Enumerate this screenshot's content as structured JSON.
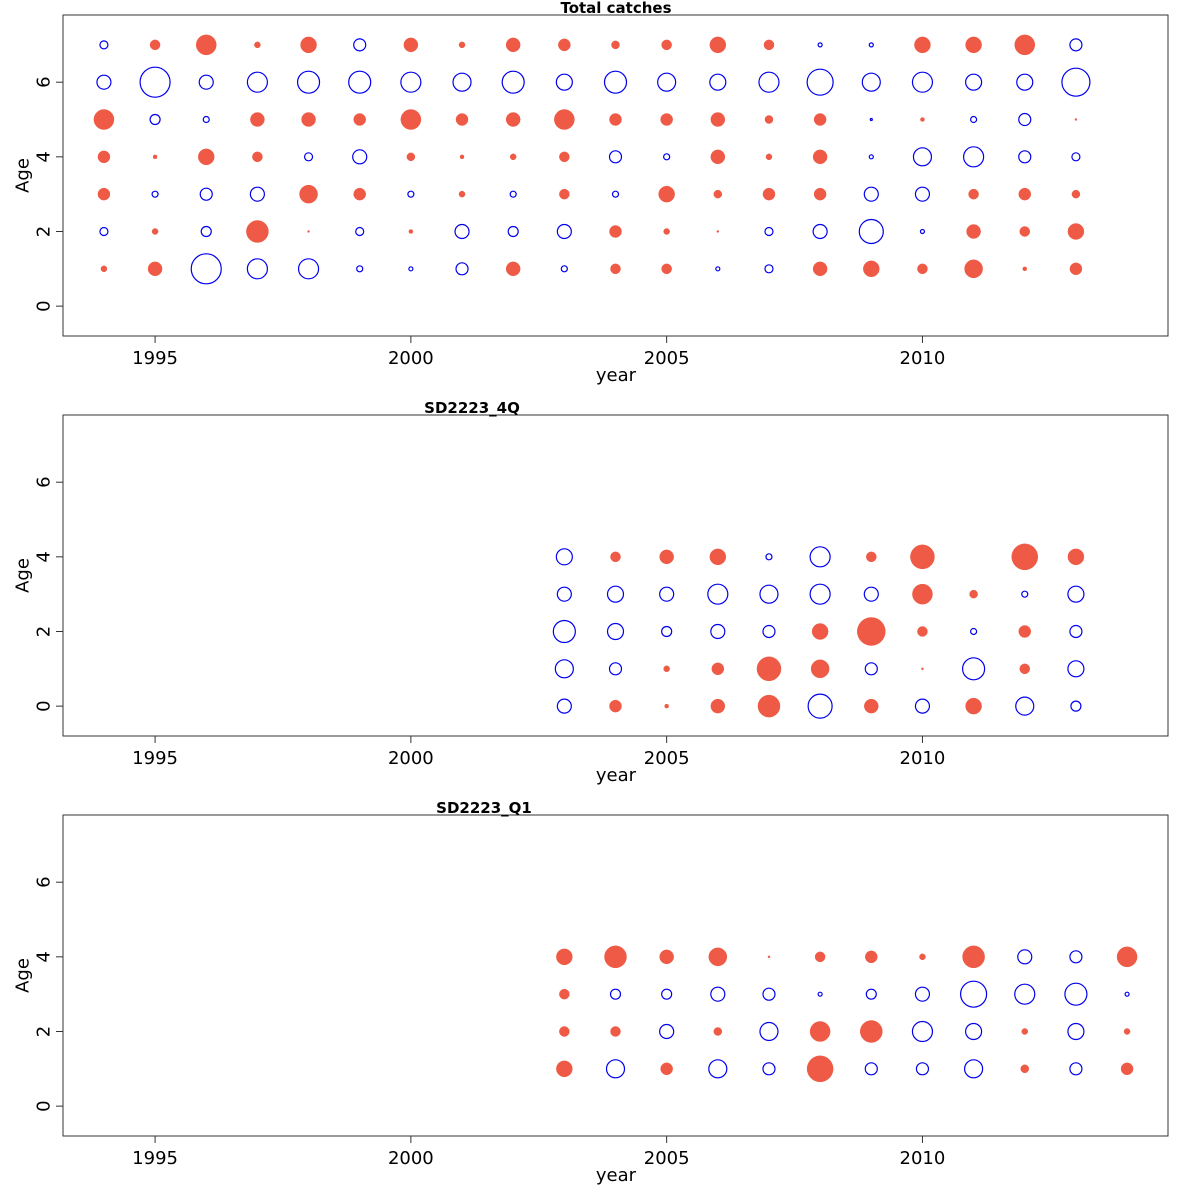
{
  "colors": {
    "positive": "#ee5a45",
    "negative": "#0000ee"
  },
  "chart_data": [
    {
      "type": "scatter",
      "title": "Total catches",
      "xlabel": "year",
      "ylabel": "Age",
      "xlim": [
        1993.2,
        2014.8
      ],
      "ylim": [
        -0.8,
        7.8
      ],
      "xticks": [
        1995,
        2000,
        2005,
        2010
      ],
      "yticks": [
        0,
        2,
        4,
        6
      ],
      "note": "points: [year, age, size, sign] sign 1 = filled, -1 = open",
      "points": [
        [
          1994,
          1,
          3,
          1
        ],
        [
          1994,
          2,
          4,
          -1
        ],
        [
          1994,
          3,
          6,
          1
        ],
        [
          1994,
          4,
          6,
          1
        ],
        [
          1994,
          5,
          10,
          1
        ],
        [
          1994,
          6,
          7,
          -1
        ],
        [
          1994,
          7,
          4,
          -1
        ],
        [
          1995,
          1,
          7,
          1
        ],
        [
          1995,
          2,
          3,
          1
        ],
        [
          1995,
          3,
          3,
          -1
        ],
        [
          1995,
          4,
          2,
          1
        ],
        [
          1995,
          5,
          5,
          -1
        ],
        [
          1995,
          6,
          15,
          -1
        ],
        [
          1995,
          7,
          5,
          1
        ],
        [
          1996,
          1,
          15,
          -1
        ],
        [
          1996,
          2,
          5,
          -1
        ],
        [
          1996,
          3,
          6,
          -1
        ],
        [
          1996,
          4,
          8,
          1
        ],
        [
          1996,
          5,
          3,
          -1
        ],
        [
          1996,
          6,
          7,
          -1
        ],
        [
          1996,
          7,
          10,
          1
        ],
        [
          1997,
          1,
          10,
          -1
        ],
        [
          1997,
          2,
          11,
          1
        ],
        [
          1997,
          3,
          7,
          -1
        ],
        [
          1997,
          4,
          5,
          1
        ],
        [
          1997,
          5,
          7,
          1
        ],
        [
          1997,
          6,
          10,
          -1
        ],
        [
          1997,
          7,
          3,
          1
        ],
        [
          1998,
          1,
          10,
          -1
        ],
        [
          1998,
          2,
          1,
          1
        ],
        [
          1998,
          3,
          9,
          1
        ],
        [
          1998,
          4,
          4,
          -1
        ],
        [
          1998,
          5,
          7,
          1
        ],
        [
          1998,
          6,
          11,
          -1
        ],
        [
          1998,
          7,
          8,
          1
        ],
        [
          1999,
          1,
          3,
          -1
        ],
        [
          1999,
          2,
          4,
          -1
        ],
        [
          1999,
          3,
          6,
          1
        ],
        [
          1999,
          4,
          7,
          -1
        ],
        [
          1999,
          5,
          6,
          1
        ],
        [
          1999,
          6,
          11,
          -1
        ],
        [
          1999,
          7,
          6,
          -1
        ],
        [
          2000,
          1,
          2,
          -1
        ],
        [
          2000,
          2,
          2,
          1
        ],
        [
          2000,
          3,
          3,
          -1
        ],
        [
          2000,
          4,
          4,
          1
        ],
        [
          2000,
          5,
          10,
          1
        ],
        [
          2000,
          6,
          10,
          -1
        ],
        [
          2000,
          7,
          7,
          1
        ],
        [
          2001,
          1,
          6,
          -1
        ],
        [
          2001,
          2,
          7,
          -1
        ],
        [
          2001,
          3,
          3,
          1
        ],
        [
          2001,
          4,
          2,
          1
        ],
        [
          2001,
          5,
          6,
          1
        ],
        [
          2001,
          6,
          9,
          -1
        ],
        [
          2001,
          7,
          3,
          1
        ],
        [
          2002,
          1,
          7,
          1
        ],
        [
          2002,
          2,
          5,
          -1
        ],
        [
          2002,
          3,
          3,
          -1
        ],
        [
          2002,
          4,
          3,
          1
        ],
        [
          2002,
          5,
          7,
          1
        ],
        [
          2002,
          6,
          11,
          -1
        ],
        [
          2002,
          7,
          7,
          1
        ],
        [
          2003,
          1,
          3,
          -1
        ],
        [
          2003,
          2,
          7,
          -1
        ],
        [
          2003,
          3,
          5,
          1
        ],
        [
          2003,
          4,
          5,
          1
        ],
        [
          2003,
          5,
          10,
          1
        ],
        [
          2003,
          6,
          8,
          -1
        ],
        [
          2003,
          7,
          6,
          1
        ],
        [
          2004,
          1,
          5,
          1
        ],
        [
          2004,
          2,
          6,
          1
        ],
        [
          2004,
          3,
          3,
          -1
        ],
        [
          2004,
          4,
          6,
          -1
        ],
        [
          2004,
          5,
          6,
          1
        ],
        [
          2004,
          6,
          11,
          -1
        ],
        [
          2004,
          7,
          4,
          1
        ],
        [
          2005,
          1,
          5,
          1
        ],
        [
          2005,
          2,
          3,
          1
        ],
        [
          2005,
          3,
          8,
          1
        ],
        [
          2005,
          4,
          3,
          -1
        ],
        [
          2005,
          5,
          6,
          1
        ],
        [
          2005,
          6,
          9,
          -1
        ],
        [
          2005,
          7,
          5,
          1
        ],
        [
          2006,
          1,
          2,
          -1
        ],
        [
          2006,
          2,
          1,
          1
        ],
        [
          2006,
          3,
          4,
          1
        ],
        [
          2006,
          4,
          7,
          1
        ],
        [
          2006,
          5,
          7,
          1
        ],
        [
          2006,
          6,
          8,
          -1
        ],
        [
          2006,
          7,
          8,
          1
        ],
        [
          2007,
          1,
          4,
          -1
        ],
        [
          2007,
          2,
          4,
          -1
        ],
        [
          2007,
          3,
          6,
          1
        ],
        [
          2007,
          4,
          3,
          1
        ],
        [
          2007,
          5,
          4,
          1
        ],
        [
          2007,
          6,
          10,
          -1
        ],
        [
          2007,
          7,
          5,
          1
        ],
        [
          2008,
          1,
          7,
          1
        ],
        [
          2008,
          2,
          7,
          -1
        ],
        [
          2008,
          3,
          6,
          1
        ],
        [
          2008,
          4,
          7,
          1
        ],
        [
          2008,
          5,
          6,
          1
        ],
        [
          2008,
          6,
          13,
          -1
        ],
        [
          2008,
          7,
          2,
          -1
        ],
        [
          2009,
          1,
          8,
          1
        ],
        [
          2009,
          2,
          12,
          -1
        ],
        [
          2009,
          3,
          7,
          -1
        ],
        [
          2009,
          4,
          2,
          -1
        ],
        [
          2009,
          5,
          1,
          -1
        ],
        [
          2009,
          6,
          9,
          -1
        ],
        [
          2009,
          7,
          2,
          -1
        ],
        [
          2010,
          1,
          5,
          1
        ],
        [
          2010,
          2,
          2,
          -1
        ],
        [
          2010,
          3,
          7,
          -1
        ],
        [
          2010,
          4,
          9,
          -1
        ],
        [
          2010,
          5,
          2,
          1
        ],
        [
          2010,
          6,
          10,
          -1
        ],
        [
          2010,
          7,
          8,
          1
        ],
        [
          2011,
          1,
          9,
          1
        ],
        [
          2011,
          2,
          7,
          1
        ],
        [
          2011,
          3,
          5,
          1
        ],
        [
          2011,
          4,
          10,
          -1
        ],
        [
          2011,
          5,
          3,
          -1
        ],
        [
          2011,
          6,
          8,
          -1
        ],
        [
          2011,
          7,
          8,
          1
        ],
        [
          2012,
          1,
          2,
          1
        ],
        [
          2012,
          2,
          5,
          1
        ],
        [
          2012,
          3,
          6,
          1
        ],
        [
          2012,
          4,
          6,
          -1
        ],
        [
          2012,
          5,
          6,
          -1
        ],
        [
          2012,
          6,
          8,
          -1
        ],
        [
          2012,
          7,
          10,
          1
        ],
        [
          2013,
          1,
          6,
          1
        ],
        [
          2013,
          2,
          8,
          1
        ],
        [
          2013,
          3,
          4,
          1
        ],
        [
          2013,
          4,
          4,
          -1
        ],
        [
          2013,
          5,
          1,
          1
        ],
        [
          2013,
          6,
          14,
          -1
        ],
        [
          2013,
          7,
          6,
          -1
        ]
      ]
    },
    {
      "type": "scatter",
      "title": "SD2223_4Q",
      "xlabel": "year",
      "ylabel": "Age",
      "xlim": [
        1993.2,
        2014.8
      ],
      "ylim": [
        -0.8,
        7.8
      ],
      "xticks": [
        1995,
        2000,
        2005,
        2010
      ],
      "yticks": [
        0,
        2,
        4,
        6
      ],
      "points": [
        [
          2003,
          0,
          7,
          -1
        ],
        [
          2003,
          1,
          9,
          -1
        ],
        [
          2003,
          2,
          11,
          -1
        ],
        [
          2003,
          3,
          7,
          -1
        ],
        [
          2003,
          4,
          8,
          -1
        ],
        [
          2004,
          0,
          6,
          1
        ],
        [
          2004,
          1,
          6,
          -1
        ],
        [
          2004,
          2,
          8,
          -1
        ],
        [
          2004,
          3,
          8,
          -1
        ],
        [
          2004,
          4,
          5,
          1
        ],
        [
          2005,
          0,
          2,
          1
        ],
        [
          2005,
          1,
          3,
          1
        ],
        [
          2005,
          2,
          5,
          -1
        ],
        [
          2005,
          3,
          7,
          -1
        ],
        [
          2005,
          4,
          7,
          1
        ],
        [
          2006,
          0,
          7,
          1
        ],
        [
          2006,
          1,
          6,
          1
        ],
        [
          2006,
          2,
          7,
          -1
        ],
        [
          2006,
          3,
          10,
          -1
        ],
        [
          2006,
          4,
          8,
          1
        ],
        [
          2007,
          0,
          11,
          1
        ],
        [
          2007,
          1,
          12,
          1
        ],
        [
          2007,
          2,
          6,
          -1
        ],
        [
          2007,
          3,
          9,
          -1
        ],
        [
          2007,
          4,
          3,
          -1
        ],
        [
          2008,
          0,
          12,
          -1
        ],
        [
          2008,
          1,
          9,
          1
        ],
        [
          2008,
          2,
          8,
          1
        ],
        [
          2008,
          3,
          10,
          -1
        ],
        [
          2008,
          4,
          10,
          -1
        ],
        [
          2009,
          0,
          7,
          1
        ],
        [
          2009,
          1,
          6,
          -1
        ],
        [
          2009,
          2,
          14,
          1
        ],
        [
          2009,
          3,
          7,
          -1
        ],
        [
          2009,
          4,
          5,
          1
        ],
        [
          2010,
          0,
          7,
          -1
        ],
        [
          2010,
          1,
          1,
          1
        ],
        [
          2010,
          2,
          5,
          1
        ],
        [
          2010,
          3,
          10,
          1
        ],
        [
          2010,
          4,
          12,
          1
        ],
        [
          2011,
          0,
          8,
          1
        ],
        [
          2011,
          1,
          11,
          -1
        ],
        [
          2011,
          2,
          3,
          -1
        ],
        [
          2011,
          3,
          4,
          1
        ],
        [
          2012,
          0,
          9,
          -1
        ],
        [
          2012,
          1,
          5,
          1
        ],
        [
          2012,
          2,
          6,
          1
        ],
        [
          2012,
          3,
          3,
          -1
        ],
        [
          2012,
          4,
          13,
          1
        ],
        [
          2013,
          0,
          5,
          -1
        ],
        [
          2013,
          1,
          8,
          -1
        ],
        [
          2013,
          2,
          6,
          -1
        ],
        [
          2013,
          3,
          8,
          -1
        ],
        [
          2013,
          4,
          8,
          1
        ]
      ]
    },
    {
      "type": "scatter",
      "title": "SD2223_Q1",
      "xlabel": "year",
      "ylabel": "Age",
      "xlim": [
        1993.2,
        2014.8
      ],
      "ylim": [
        -0.8,
        7.8
      ],
      "xticks": [
        1995,
        2000,
        2005,
        2010
      ],
      "yticks": [
        0,
        2,
        4,
        6
      ],
      "points": [
        [
          2003,
          1,
          8,
          1
        ],
        [
          2003,
          2,
          5,
          1
        ],
        [
          2003,
          3,
          5,
          1
        ],
        [
          2003,
          4,
          8,
          1
        ],
        [
          2004,
          1,
          9,
          -1
        ],
        [
          2004,
          2,
          5,
          1
        ],
        [
          2004,
          3,
          5,
          -1
        ],
        [
          2004,
          4,
          11,
          1
        ],
        [
          2005,
          1,
          6,
          1
        ],
        [
          2005,
          2,
          7,
          -1
        ],
        [
          2005,
          3,
          5,
          -1
        ],
        [
          2005,
          4,
          7,
          1
        ],
        [
          2006,
          1,
          9,
          -1
        ],
        [
          2006,
          2,
          4,
          1
        ],
        [
          2006,
          3,
          7,
          -1
        ],
        [
          2006,
          4,
          9,
          1
        ],
        [
          2007,
          1,
          6,
          -1
        ],
        [
          2007,
          2,
          9,
          -1
        ],
        [
          2007,
          3,
          6,
          -1
        ],
        [
          2007,
          4,
          1,
          1
        ],
        [
          2008,
          1,
          13,
          1
        ],
        [
          2008,
          2,
          10,
          1
        ],
        [
          2008,
          3,
          2,
          -1
        ],
        [
          2008,
          4,
          5,
          1
        ],
        [
          2009,
          1,
          6,
          -1
        ],
        [
          2009,
          2,
          11,
          1
        ],
        [
          2009,
          3,
          5,
          -1
        ],
        [
          2009,
          4,
          6,
          1
        ],
        [
          2010,
          1,
          6,
          -1
        ],
        [
          2010,
          2,
          10,
          -1
        ],
        [
          2010,
          3,
          7,
          -1
        ],
        [
          2010,
          4,
          3,
          1
        ],
        [
          2011,
          1,
          9,
          -1
        ],
        [
          2011,
          2,
          8,
          -1
        ],
        [
          2011,
          3,
          13,
          -1
        ],
        [
          2011,
          4,
          11,
          1
        ],
        [
          2012,
          1,
          4,
          1
        ],
        [
          2012,
          2,
          3,
          1
        ],
        [
          2012,
          3,
          10,
          -1
        ],
        [
          2012,
          4,
          7,
          -1
        ],
        [
          2013,
          1,
          6,
          -1
        ],
        [
          2013,
          2,
          8,
          -1
        ],
        [
          2013,
          3,
          11,
          -1
        ],
        [
          2013,
          4,
          6,
          -1
        ],
        [
          2014,
          1,
          6,
          1
        ],
        [
          2014,
          2,
          3,
          1
        ],
        [
          2014,
          3,
          2,
          -1
        ],
        [
          2014,
          4,
          10,
          1
        ]
      ]
    }
  ]
}
